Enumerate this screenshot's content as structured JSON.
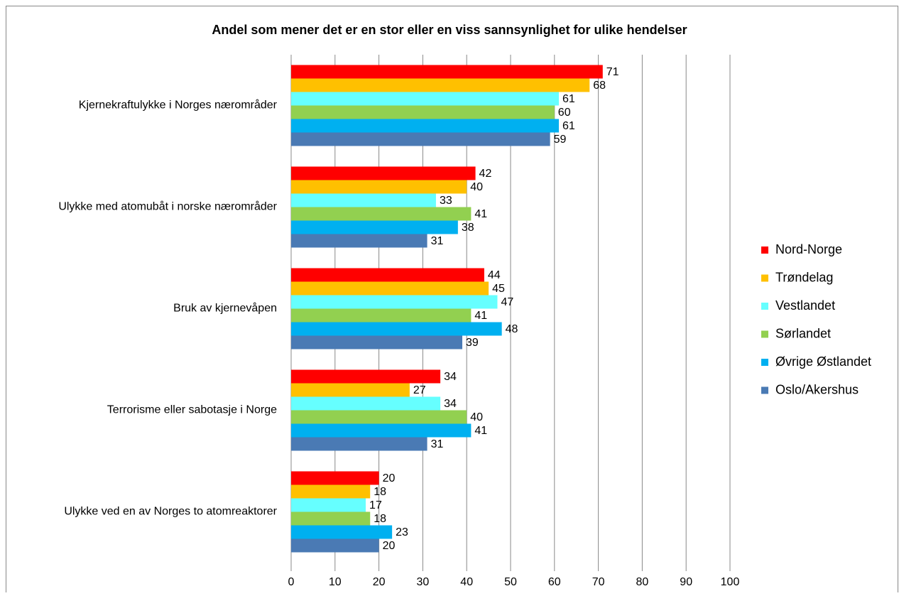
{
  "chart_data": {
    "type": "hbar",
    "title": "Andel som mener det er en stor eller en viss sannsynlighet for ulike hendelser",
    "categories": [
      "Kjernekraftulykke i Norges nærområder",
      "Ulykke med atomubåt i norske nærområder",
      "Bruk av kjernevåpen",
      "Terrorisme eller sabotasje i Norge",
      "Ulykke ved en av Norges to atomreaktorer"
    ],
    "series": [
      {
        "name": "Nord-Norge",
        "color": "#ff0000",
        "values": [
          71,
          42,
          44,
          34,
          20
        ]
      },
      {
        "name": "Trøndelag",
        "color": "#ffc000",
        "values": [
          68,
          40,
          45,
          27,
          18
        ]
      },
      {
        "name": "Vestlandet",
        "color": "#66ffff",
        "values": [
          61,
          33,
          47,
          34,
          17
        ]
      },
      {
        "name": "Sørlandet",
        "color": "#92d050",
        "values": [
          60,
          41,
          41,
          40,
          18
        ]
      },
      {
        "name": "Øvrige Østlandet",
        "color": "#00b0f0",
        "values": [
          61,
          38,
          48,
          41,
          23
        ]
      },
      {
        "name": "Oslo/Akershus",
        "color": "#4a7ab4",
        "values": [
          59,
          31,
          39,
          31,
          20
        ]
      }
    ],
    "xlim": [
      0,
      100
    ],
    "xticks": [
      0,
      10,
      20,
      30,
      40,
      50,
      60,
      70,
      80,
      90,
      100
    ],
    "grid": true,
    "legend": "right"
  }
}
